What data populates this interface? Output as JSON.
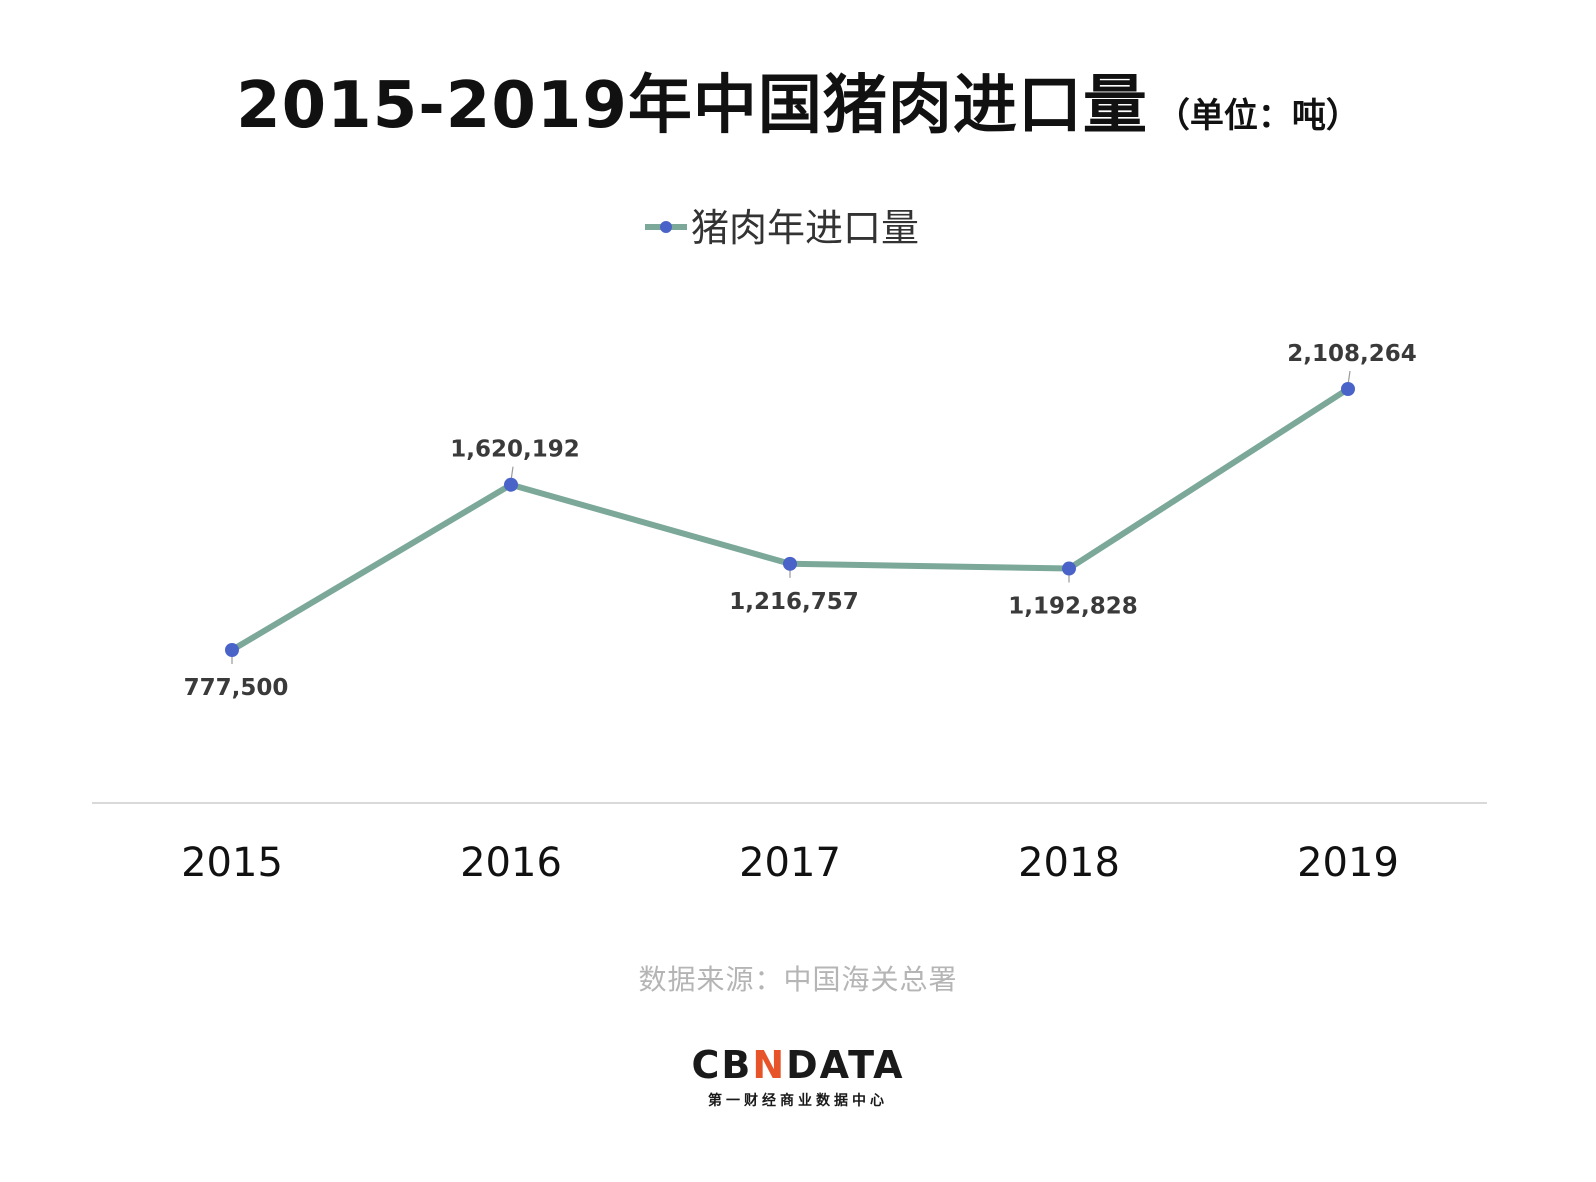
{
  "title": {
    "main": "2015-2019年中国猪肉进口量",
    "unit": "（单位：吨）"
  },
  "source": "数据来源：中国海关总署",
  "logo": {
    "pre": "CB",
    "n": "N",
    "post": "DATA",
    "subtitle": "第一财经商业数据中心"
  },
  "colors": {
    "line": "#7ba898",
    "marker": "#4a63c8",
    "axis": "#d9d9d9",
    "label": "#3a3a3a",
    "tick": "#111111",
    "brand_accent": "#e8542a"
  },
  "chart_data": {
    "type": "line",
    "title": "2015-2019年中国猪肉进口量（单位：吨）",
    "categories": [
      "2015",
      "2016",
      "2017",
      "2018",
      "2019"
    ],
    "series": [
      {
        "name": "猪肉年进口量",
        "values": [
          777500,
          1620192,
          1216757,
          1192828,
          2108264
        ],
        "labels": [
          "777,500",
          "1,620,192",
          "1,216,757",
          "1,192,828",
          "2,108,264"
        ],
        "label_positions": [
          "below",
          "above",
          "below",
          "below",
          "above"
        ]
      }
    ],
    "xlabel": "",
    "ylabel": "",
    "grid": false,
    "legend": "top-center",
    "y_axis_visible": false
  }
}
